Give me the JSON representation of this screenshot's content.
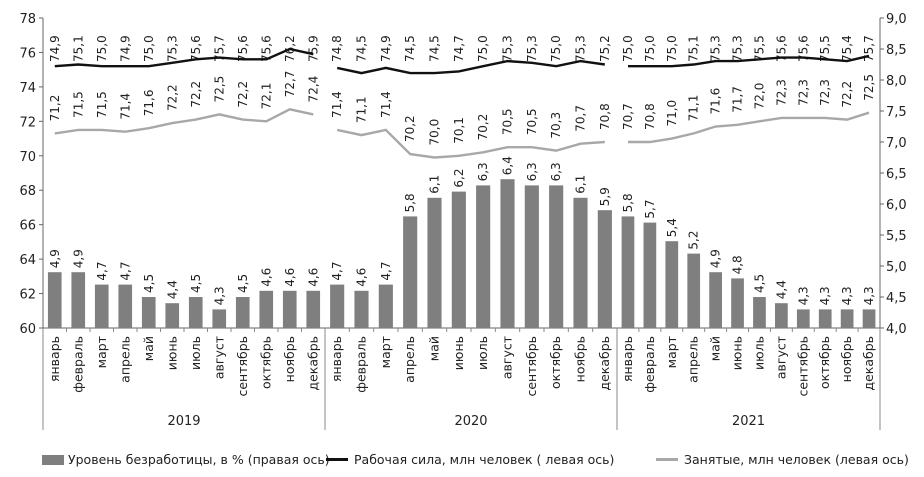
{
  "chart_data": {
    "type": "bar",
    "years": [
      {
        "label": "2019",
        "months": [
          "январь",
          "февраль",
          "март",
          "апрель",
          "май",
          "июнь",
          "июль",
          "август",
          "сентябрь",
          "октябрь",
          "ноябрь",
          "декабрь"
        ]
      },
      {
        "label": "2020",
        "months": [
          "январь",
          "февраль",
          "март",
          "апрель",
          "май",
          "июнь",
          "июль",
          "август",
          "сентябрь",
          "октябрь",
          "ноябрь",
          "декабрь"
        ]
      },
      {
        "label": "2021",
        "months": [
          "январь",
          "февраль",
          "март",
          "апрель",
          "май",
          "июнь",
          "июль",
          "август",
          "сентябрь",
          "октябрь",
          "ноябрь",
          "декабрь"
        ]
      }
    ],
    "series": [
      {
        "name": "Уровень безработицы, в % (правая ось)",
        "type": "bar",
        "axis": "right",
        "color": "#7f7f7f",
        "labels": [
          [
            "4,9",
            "4,9",
            "4,7",
            "4,7",
            "4,5",
            "4,4",
            "4,5",
            "4,3",
            "4,5",
            "4,6",
            "4,6",
            "4,6"
          ],
          [
            "4,7",
            "4,6",
            "4,7",
            "5,8",
            "6,1",
            "6,2",
            "6,3",
            "6,4",
            "6,3",
            "6,3",
            "6,1",
            "5,9"
          ],
          [
            "5,8",
            "5,7",
            "5,4",
            "5,2",
            "4,9",
            "4,8",
            "4,5",
            "4,4",
            "4,3",
            "4,3",
            "4,3",
            "4,3"
          ]
        ],
        "values": [
          [
            4.9,
            4.9,
            4.7,
            4.7,
            4.5,
            4.4,
            4.5,
            4.3,
            4.5,
            4.6,
            4.6,
            4.6
          ],
          [
            4.7,
            4.6,
            4.7,
            5.8,
            6.1,
            6.2,
            6.3,
            6.4,
            6.3,
            6.3,
            6.1,
            5.9
          ],
          [
            5.8,
            5.7,
            5.4,
            5.2,
            4.9,
            4.8,
            4.5,
            4.4,
            4.3,
            4.3,
            4.3,
            4.3
          ]
        ]
      },
      {
        "name": "Рабочая сила, млн человек ( левая ось)",
        "type": "line",
        "axis": "left",
        "color": "#111111",
        "labels": [
          [
            "74,9",
            "75,1",
            "75,0",
            "74,9",
            "75,0",
            "75,3",
            "75,6",
            "75,7",
            "75,6",
            "75,6",
            "76,2",
            "75,9"
          ],
          [
            "74,8",
            "74,5",
            "74,9",
            "74,5",
            "74,5",
            "74,7",
            "75,0",
            "75,3",
            "75,3",
            "75,0",
            "75,3",
            "75,2"
          ],
          [
            "75,0",
            "75,0",
            "75,0",
            "75,1",
            "75,3",
            "75,3",
            "75,5",
            "75,6",
            "75,6",
            "75,5",
            "75,4",
            "75,7"
          ]
        ],
        "values": [
          [
            74.9,
            75.1,
            75.0,
            74.9,
            75.0,
            75.3,
            75.6,
            75.7,
            75.6,
            75.6,
            76.2,
            75.9
          ],
          [
            74.8,
            74.5,
            74.9,
            74.5,
            74.5,
            74.7,
            75.0,
            75.3,
            75.3,
            75.0,
            75.3,
            75.2
          ],
          [
            75.0,
            75.0,
            75.0,
            75.1,
            75.3,
            75.3,
            75.5,
            75.6,
            75.6,
            75.5,
            75.4,
            75.7
          ]
        ],
        "line_y_left": [
          [
            75.2,
            75.3,
            75.2,
            75.2,
            75.2,
            75.4,
            75.6,
            75.7,
            75.6,
            75.6,
            76.2,
            75.9
          ],
          [
            75.1,
            74.8,
            75.1,
            74.8,
            74.8,
            74.9,
            75.2,
            75.5,
            75.4,
            75.2,
            75.5,
            75.3
          ],
          [
            75.2,
            75.2,
            75.2,
            75.3,
            75.5,
            75.5,
            75.6,
            75.7,
            75.7,
            75.6,
            75.5,
            75.8
          ]
        ]
      },
      {
        "name": "Занятые, млн человек (левая ось)",
        "type": "line",
        "axis": "left",
        "color": "#a8a8a8",
        "labels": [
          [
            "71,2",
            "71,5",
            "71,5",
            "71,4",
            "71,6",
            "72,2",
            "72,2",
            "72,5",
            "72,2",
            "72,1",
            "72,7",
            "72,4"
          ],
          [
            "71,4",
            "71,1",
            "71,4",
            "70,2",
            "70,0",
            "70,1",
            "70,2",
            "70,5",
            "70,5",
            "70,3",
            "70,7",
            "70,8"
          ],
          [
            "70,7",
            "70,8",
            "71,0",
            "71,1",
            "71,6",
            "71,7",
            "72,0",
            "72,3",
            "72,3",
            "72,3",
            "72,2",
            "72,5"
          ]
        ],
        "values": [
          [
            71.2,
            71.5,
            71.5,
            71.4,
            71.6,
            72.2,
            72.2,
            72.5,
            72.2,
            72.1,
            72.7,
            72.4
          ],
          [
            71.4,
            71.1,
            71.4,
            70.2,
            70.0,
            70.1,
            70.2,
            70.5,
            70.5,
            70.3,
            70.7,
            70.8
          ],
          [
            70.7,
            70.8,
            71.0,
            71.1,
            71.6,
            71.7,
            72.0,
            72.3,
            72.3,
            72.3,
            72.2,
            72.5
          ]
        ],
        "line_y_left": [
          [
            71.3,
            71.5,
            71.5,
            71.4,
            71.6,
            71.9,
            72.1,
            72.4,
            72.1,
            72.0,
            72.7,
            72.4
          ],
          [
            71.5,
            71.2,
            71.5,
            70.1,
            69.9,
            70.0,
            70.2,
            70.5,
            70.5,
            70.3,
            70.7,
            70.8
          ],
          [
            70.8,
            70.8,
            71.0,
            71.3,
            71.7,
            71.8,
            72.0,
            72.2,
            72.2,
            72.2,
            72.1,
            72.5
          ]
        ]
      }
    ],
    "y_left": {
      "min": 60,
      "max": 78,
      "ticks": [
        "60",
        "62",
        "64",
        "66",
        "68",
        "70",
        "72",
        "74",
        "76",
        "78"
      ]
    },
    "y_right": {
      "min": 4.0,
      "max": 9.0,
      "ticks": [
        "4,0",
        "4,5",
        "5,0",
        "5,5",
        "6,0",
        "6,5",
        "7,0",
        "7,5",
        "8,0",
        "8,5",
        "9,0"
      ]
    },
    "legend_position": "bottom",
    "grid": false
  }
}
